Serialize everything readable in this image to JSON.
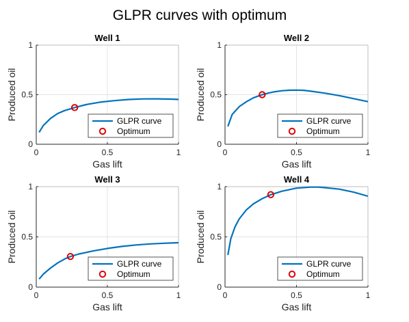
{
  "figure": {
    "title": "GLPR curves with optimum"
  },
  "chart_data": [
    {
      "type": "line",
      "title": "Well 1",
      "xlabel": "Gas lift",
      "ylabel": "Produced oil",
      "xlim": [
        0,
        1
      ],
      "ylim": [
        0,
        1
      ],
      "xticks": [
        "0",
        "0.5",
        "1"
      ],
      "yticks": [
        "0",
        "0.5",
        "1"
      ],
      "grid": true,
      "legend": "bottom-right",
      "series": [
        {
          "name": "GLPR curve",
          "color": "#0072bd",
          "x": [
            0.02,
            0.05,
            0.1,
            0.15,
            0.2,
            0.27,
            0.35,
            0.45,
            0.55,
            0.65,
            0.75,
            0.85,
            0.95,
            1.0
          ],
          "y": [
            0.12,
            0.19,
            0.26,
            0.31,
            0.34,
            0.37,
            0.4,
            0.425,
            0.44,
            0.452,
            0.457,
            0.458,
            0.455,
            0.452
          ]
        },
        {
          "name": "Optimum",
          "type": "scatter",
          "color": "#e00000",
          "x": [
            0.27
          ],
          "y": [
            0.37
          ]
        }
      ]
    },
    {
      "type": "line",
      "title": "Well 2",
      "xlabel": "Gas lift",
      "ylabel": "Produced oil",
      "xlim": [
        0,
        1
      ],
      "ylim": [
        0,
        1
      ],
      "xticks": [
        "0",
        "0.5",
        "1"
      ],
      "yticks": [
        "0",
        "0.5",
        "1"
      ],
      "grid": true,
      "legend": "bottom-right",
      "series": [
        {
          "name": "GLPR curve",
          "color": "#0072bd",
          "x": [
            0.02,
            0.05,
            0.1,
            0.15,
            0.2,
            0.26,
            0.3,
            0.35,
            0.4,
            0.45,
            0.5,
            0.55,
            0.6,
            0.7,
            0.8,
            0.9,
            1.0
          ],
          "y": [
            0.18,
            0.3,
            0.38,
            0.43,
            0.47,
            0.5,
            0.515,
            0.53,
            0.54,
            0.545,
            0.546,
            0.544,
            0.535,
            0.515,
            0.49,
            0.46,
            0.43
          ]
        },
        {
          "name": "Optimum",
          "type": "scatter",
          "color": "#e00000",
          "x": [
            0.26
          ],
          "y": [
            0.5
          ]
        }
      ]
    },
    {
      "type": "line",
      "title": "Well 3",
      "xlabel": "Gas lift",
      "ylabel": "Produced oil",
      "xlim": [
        0,
        1
      ],
      "ylim": [
        0,
        1
      ],
      "xticks": [
        "0",
        "0.5",
        "1"
      ],
      "yticks": [
        "0",
        "0.5",
        "1"
      ],
      "grid": true,
      "legend": "bottom-right",
      "series": [
        {
          "name": "GLPR curve",
          "color": "#0072bd",
          "x": [
            0.02,
            0.05,
            0.1,
            0.15,
            0.2,
            0.24,
            0.3,
            0.4,
            0.5,
            0.6,
            0.7,
            0.8,
            0.9,
            1.0
          ],
          "y": [
            0.08,
            0.13,
            0.19,
            0.24,
            0.28,
            0.305,
            0.33,
            0.36,
            0.385,
            0.405,
            0.42,
            0.43,
            0.437,
            0.442
          ]
        },
        {
          "name": "Optimum",
          "type": "scatter",
          "color": "#e00000",
          "x": [
            0.24
          ],
          "y": [
            0.305
          ]
        }
      ]
    },
    {
      "type": "line",
      "title": "Well 4",
      "xlabel": "Gas lift",
      "ylabel": "Produced oil",
      "xlim": [
        0,
        1
      ],
      "ylim": [
        0,
        1
      ],
      "xticks": [
        "0",
        "0.5",
        "1"
      ],
      "yticks": [
        "0",
        "0.5",
        "1"
      ],
      "grid": true,
      "legend": "bottom-right",
      "series": [
        {
          "name": "GLPR curve",
          "color": "#0072bd",
          "x": [
            0.02,
            0.04,
            0.07,
            0.1,
            0.15,
            0.2,
            0.26,
            0.32,
            0.4,
            0.5,
            0.6,
            0.65,
            0.7,
            0.8,
            0.9,
            1.0
          ],
          "y": [
            0.32,
            0.48,
            0.6,
            0.68,
            0.77,
            0.83,
            0.88,
            0.92,
            0.955,
            0.985,
            0.995,
            0.995,
            0.99,
            0.975,
            0.945,
            0.905
          ]
        },
        {
          "name": "Optimum",
          "type": "scatter",
          "color": "#e00000",
          "x": [
            0.32
          ],
          "y": [
            0.92
          ]
        }
      ]
    }
  ]
}
